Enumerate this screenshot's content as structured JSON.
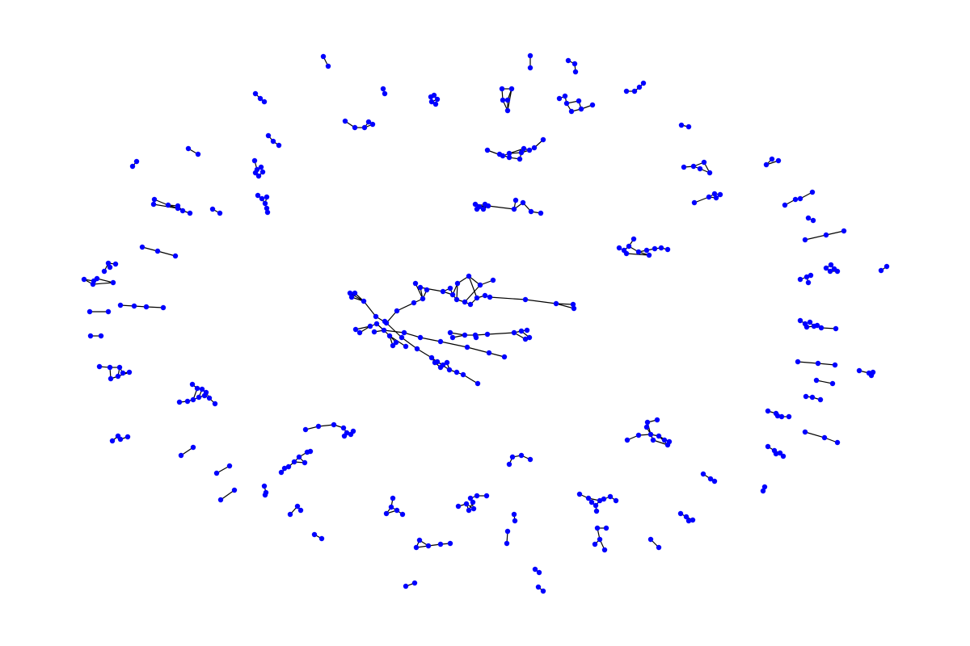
{
  "diagram": {
    "type": "network-graph",
    "layout": "spring",
    "node_color": "#0000ff",
    "edge_color": "#000000",
    "background_color": "#ffffff",
    "labels_shown": false,
    "axes_shown": false
  }
}
